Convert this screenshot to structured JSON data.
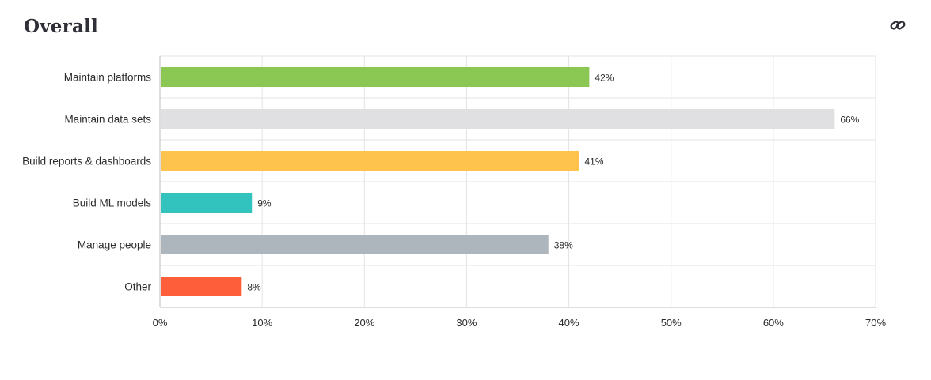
{
  "header": {
    "title": "Overall",
    "link_icon": "link-icon"
  },
  "colors": {
    "gridline": "#e3e3e3",
    "axis": "#bdbdbd",
    "text": "#2b2b2b"
  },
  "chart_data": {
    "type": "bar",
    "orientation": "horizontal",
    "title": "Overall",
    "categories": [
      "Maintain platforms",
      "Maintain data sets",
      "Build reports & dashboards",
      "Build ML models",
      "Manage people",
      "Other"
    ],
    "values": [
      42,
      66,
      41,
      9,
      38,
      8
    ],
    "value_labels": [
      "42%",
      "66%",
      "41%",
      "9%",
      "38%",
      "8%"
    ],
    "bar_colors": [
      "#8bc853",
      "#e0e0e2",
      "#fec34d",
      "#32c3be",
      "#adb5bd",
      "#ff5e3a"
    ],
    "xlim": [
      0,
      70
    ],
    "xticks": [
      0,
      10,
      20,
      30,
      40,
      50,
      60,
      70
    ],
    "xtick_labels": [
      "0%",
      "10%",
      "20%",
      "30%",
      "40%",
      "50%",
      "60%",
      "70%"
    ],
    "grid": true,
    "legend": "none"
  }
}
